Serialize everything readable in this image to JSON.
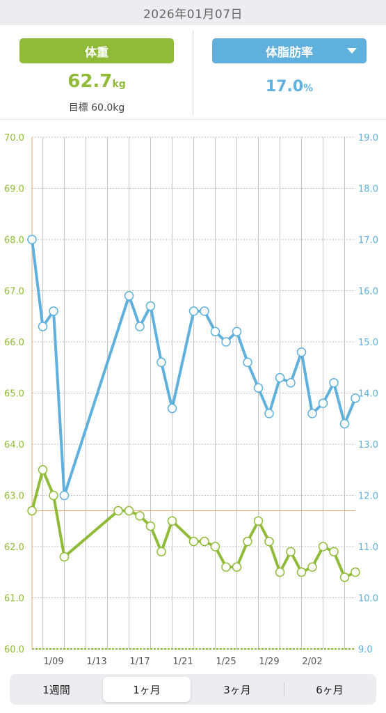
{
  "header": {
    "date": "2026年01月07日"
  },
  "metrics": {
    "weight": {
      "label": "体重",
      "value": "62.7",
      "unit": "kg",
      "goal": "目標 60.0kg"
    },
    "body_fat": {
      "label": "体脂肪率",
      "value": "17.0",
      "unit": "%"
    }
  },
  "colors": {
    "weight": "#8fbb38",
    "body_fat": "#5fb0dc",
    "goal_line": "#f2a774"
  },
  "chart_data": {
    "type": "line",
    "x_start": "2026-01-07",
    "x_end": "2026-02-06",
    "x_ticks": [
      "1/09",
      "1/13",
      "1/17",
      "1/21",
      "1/25",
      "1/29",
      "2/02"
    ],
    "y_left": {
      "range": [
        60.0,
        70.0
      ],
      "ticks": [
        "60.0",
        "61.0",
        "62.0",
        "63.0",
        "64.0",
        "65.0",
        "66.0",
        "67.0",
        "68.0",
        "69.0",
        "70.0"
      ]
    },
    "y_right": {
      "range": [
        9.0,
        19.0
      ],
      "ticks": [
        "9.0",
        "10.0",
        "11.0",
        "12.0",
        "13.0",
        "14.0",
        "15.0",
        "16.0",
        "17.0",
        "18.0",
        "19.0"
      ]
    },
    "goal_weight": 60.0,
    "reference_weight": 62.7,
    "series": [
      {
        "axis": "left",
        "values": [
          [
            "2026-01-07",
            62.7
          ],
          [
            "2026-01-08",
            63.5
          ],
          [
            "2026-01-09",
            63.0
          ],
          [
            "2026-01-10",
            61.8
          ],
          [
            "2026-01-15",
            62.7
          ],
          [
            "2026-01-16",
            62.7
          ],
          [
            "2026-01-17",
            62.6
          ],
          [
            "2026-01-18",
            62.4
          ],
          [
            "2026-01-19",
            61.9
          ],
          [
            "2026-01-20",
            62.5
          ],
          [
            "2026-01-22",
            62.1
          ],
          [
            "2026-01-23",
            62.1
          ],
          [
            "2026-01-24",
            62.0
          ],
          [
            "2026-01-25",
            61.6
          ],
          [
            "2026-01-26",
            61.6
          ],
          [
            "2026-01-27",
            62.1
          ],
          [
            "2026-01-28",
            62.5
          ],
          [
            "2026-01-29",
            62.1
          ],
          [
            "2026-01-30",
            61.5
          ],
          [
            "2026-01-31",
            61.9
          ],
          [
            "2026-02-01",
            61.5
          ],
          [
            "2026-02-02",
            61.6
          ],
          [
            "2026-02-03",
            62.0
          ],
          [
            "2026-02-04",
            61.9
          ],
          [
            "2026-02-05",
            61.4
          ],
          [
            "2026-02-06",
            61.5
          ]
        ]
      },
      {
        "axis": "right",
        "values": [
          [
            "2026-01-07",
            17.0
          ],
          [
            "2026-01-08",
            15.3
          ],
          [
            "2026-01-09",
            15.6
          ],
          [
            "2026-01-10",
            12.0
          ],
          [
            "2026-01-16",
            15.9
          ],
          [
            "2026-01-17",
            15.3
          ],
          [
            "2026-01-18",
            15.7
          ],
          [
            "2026-01-19",
            14.6
          ],
          [
            "2026-01-20",
            13.7
          ],
          [
            "2026-01-22",
            15.6
          ],
          [
            "2026-01-23",
            15.6
          ],
          [
            "2026-01-24",
            15.2
          ],
          [
            "2026-01-25",
            15.0
          ],
          [
            "2026-01-26",
            15.2
          ],
          [
            "2026-01-27",
            14.6
          ],
          [
            "2026-01-28",
            14.1
          ],
          [
            "2026-01-29",
            13.6
          ],
          [
            "2026-01-30",
            14.3
          ],
          [
            "2026-01-31",
            14.2
          ],
          [
            "2026-02-01",
            14.8
          ],
          [
            "2026-02-02",
            13.6
          ],
          [
            "2026-02-03",
            13.8
          ],
          [
            "2026-02-04",
            14.2
          ],
          [
            "2026-02-05",
            13.4
          ],
          [
            "2026-02-06",
            13.9
          ]
        ]
      }
    ]
  },
  "tabs": [
    {
      "label": "1週間",
      "active": false
    },
    {
      "label": "1ヶ月",
      "active": true
    },
    {
      "label": "3ヶ月",
      "active": false
    },
    {
      "label": "6ヶ月",
      "active": false
    }
  ]
}
